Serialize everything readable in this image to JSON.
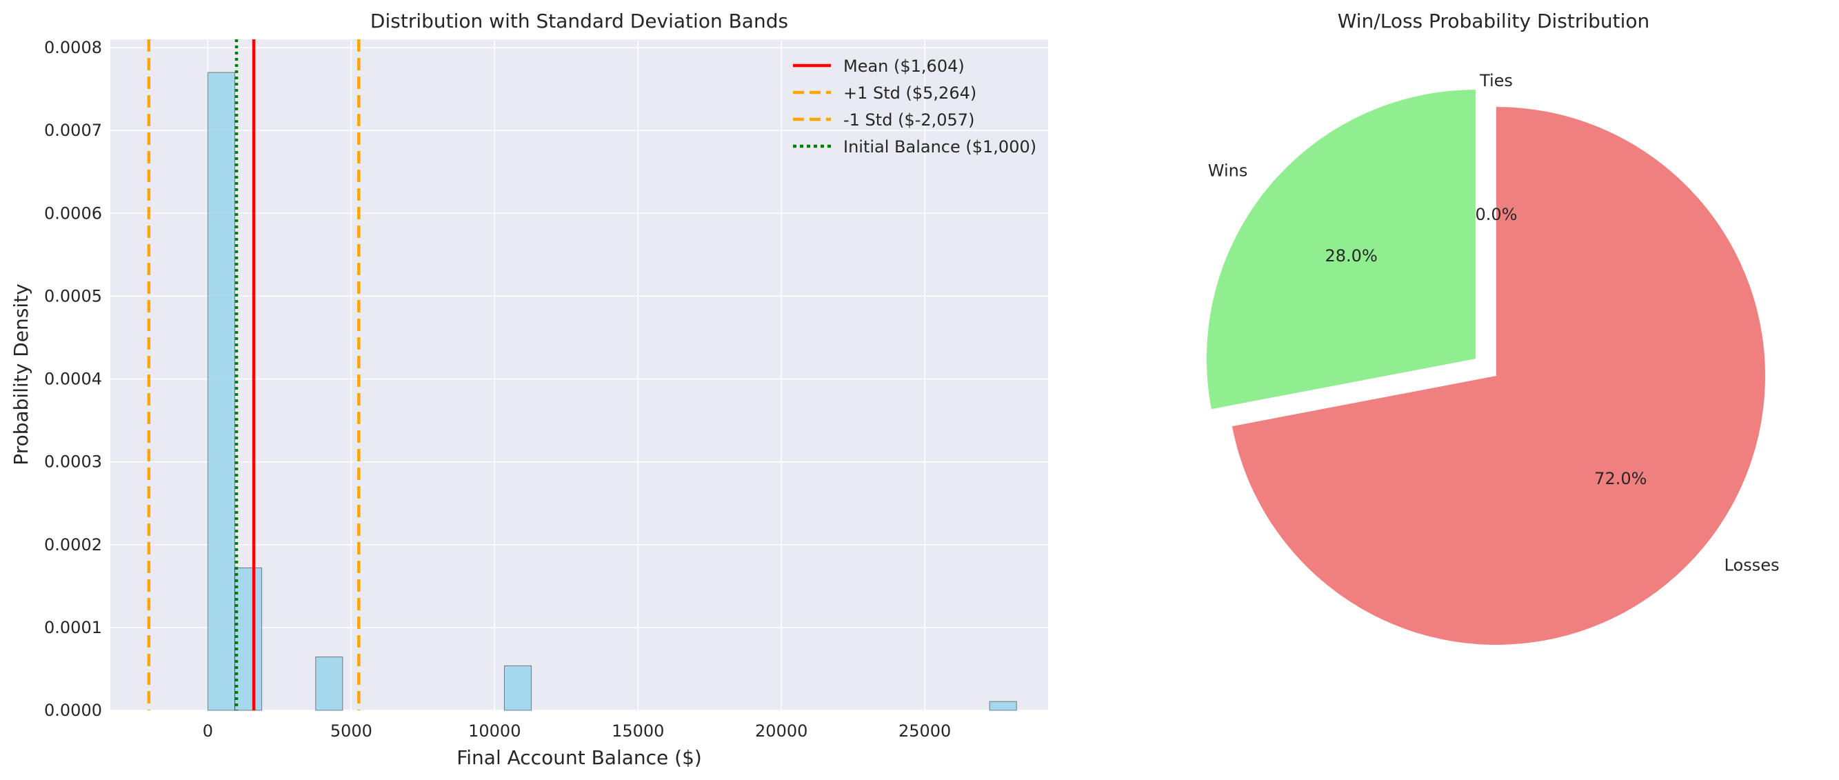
{
  "chart_data": [
    {
      "type": "bar",
      "subtype": "histogram",
      "title": "Distribution with Standard Deviation Bands",
      "xlabel": "Final Account Balance ($)",
      "ylabel": "Probability Density",
      "xlim": [
        -3400,
        29300
      ],
      "ylim": [
        0,
        0.00081
      ],
      "xticks": [
        0,
        5000,
        10000,
        15000,
        20000,
        25000
      ],
      "xtick_labels": [
        "0",
        "5000",
        "10000",
        "15000",
        "20000",
        "25000"
      ],
      "yticks": [
        0,
        0.0001,
        0.0002,
        0.0003,
        0.0004,
        0.0005,
        0.0006,
        0.0007,
        0.0008
      ],
      "ytick_labels": [
        "0.0000",
        "0.0001",
        "0.0002",
        "0.0003",
        "0.0004",
        "0.0005",
        "0.0006",
        "0.0007",
        "0.0008"
      ],
      "grid": true,
      "legend_position": "top-right",
      "bar_color": "#87ceeb",
      "bins": [
        {
          "x0": 0,
          "x1": 940,
          "value": 0.00077
        },
        {
          "x0": 940,
          "x1": 1880,
          "value": 0.000172
        },
        {
          "x0": 3760,
          "x1": 4700,
          "value": 6.45e-05
        },
        {
          "x0": 10340,
          "x1": 11280,
          "value": 5.38e-05
        },
        {
          "x0": 27260,
          "x1": 28200,
          "value": 1.07e-05
        }
      ],
      "reference_lines": [
        {
          "label": "Mean ($1,604)",
          "x": 1604,
          "color": "#ff0000",
          "style": "solid"
        },
        {
          "label": "+1 Std ($5,264)",
          "x": 5264,
          "color": "#ffa500",
          "style": "dashed"
        },
        {
          "label": "-1 Std ($-2,057)",
          "x": -2057,
          "color": "#ffa500",
          "style": "dashed"
        },
        {
          "label": "Initial Balance ($1,000)",
          "x": 1000,
          "color": "#008000",
          "style": "dotted"
        }
      ]
    },
    {
      "type": "pie",
      "title": "Win/Loss Probability Distribution",
      "start_angle": 90,
      "slices": [
        {
          "label": "Wins",
          "value": 28.0,
          "pct_label": "28.0%",
          "color": "#90ee90",
          "explode": 0.1
        },
        {
          "label": "Losses",
          "value": 72.0,
          "pct_label": "72.0%",
          "color": "#f08080",
          "explode": 0
        },
        {
          "label": "Ties",
          "value": 0.0,
          "pct_label": "0.0%",
          "color": "#87ceeb",
          "explode": 0
        }
      ]
    }
  ]
}
